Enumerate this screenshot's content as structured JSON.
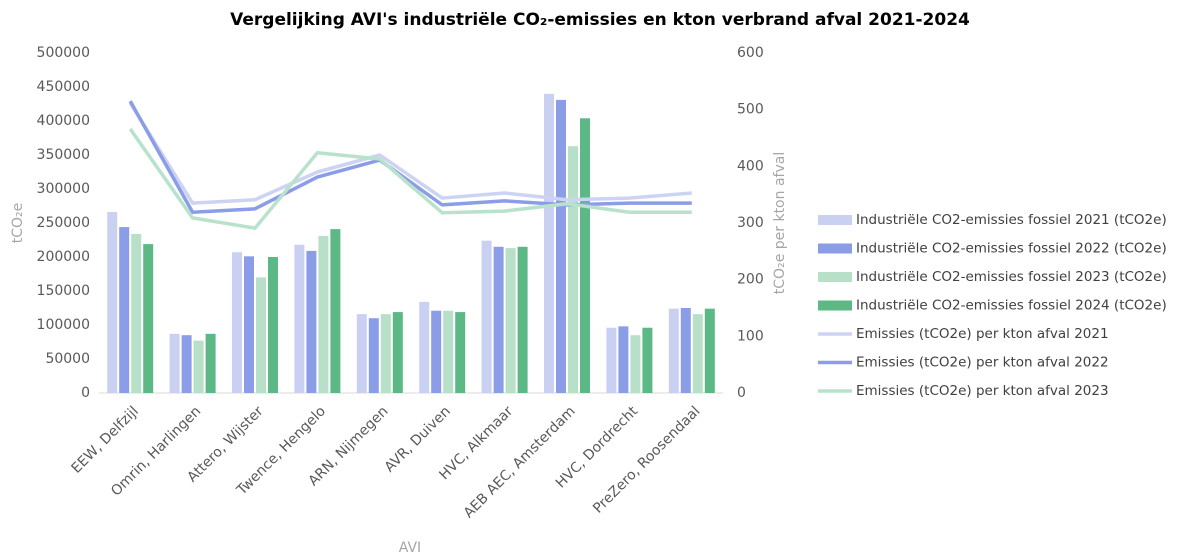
{
  "chart_data": {
    "type": "bar_line",
    "title": "Vergelijking AVI's industriële CO₂-emissies en kton verbrand afval 2021-2024",
    "x_label": "AVI",
    "y_label": "tCO₂e",
    "y2_label": "tCO₂e per kton afval",
    "categories": [
      "EEW, Delfzijl",
      "Omrin, Harlingen",
      "Attero, Wijster",
      "Twence, Hengelo",
      "ARN, Nijmegen",
      "AVR, Duiven",
      "HVC, Alkmaar",
      "AEB AEC, Amsterdam",
      "HVC, Dordrecht",
      "PreZero, Roosendaal"
    ],
    "ylim": [
      0,
      500000
    ],
    "yticks": [
      0,
      50000,
      100000,
      150000,
      200000,
      250000,
      300000,
      350000,
      400000,
      450000,
      500000
    ],
    "y2lim": [
      0,
      600
    ],
    "y2ticks": [
      0,
      100,
      200,
      300,
      400,
      500,
      600
    ],
    "grid": false,
    "legend": "right",
    "series": [
      {
        "name": "Industriële CO2-emissies fossiel 2021 (tCO2e)",
        "type": "bar",
        "color": "#c9d0f2",
        "values": [
          266000,
          87000,
          207000,
          218000,
          116000,
          134000,
          224000,
          440000,
          96000,
          124000
        ]
      },
      {
        "name": "Industriële CO2-emissies fossiel 2022 (tCO2e)",
        "type": "bar",
        "color": "#8a9de6",
        "values": [
          244000,
          85000,
          201000,
          209000,
          110000,
          121000,
          215000,
          431000,
          98000,
          125000
        ]
      },
      {
        "name": "Industriële CO2-emissies fossiel 2023 (tCO2e)",
        "type": "bar",
        "color": "#b8e0c8",
        "values": [
          234000,
          77000,
          170000,
          231000,
          116000,
          121000,
          213000,
          363000,
          85000,
          116000
        ]
      },
      {
        "name": "Industriële CO2-emissies fossiel 2024 (tCO2e)",
        "type": "bar",
        "color": "#5cb885",
        "values": [
          219000,
          87000,
          200000,
          241000,
          119000,
          119000,
          215000,
          404000,
          96000,
          124000
        ]
      },
      {
        "name": "Emissies (tCO2e) per kton afval 2021",
        "type": "line",
        "axis": "y2",
        "color": "#cdd3f2",
        "values": [
          512,
          335,
          341,
          390,
          420,
          344,
          353,
          341,
          344,
          353
        ]
      },
      {
        "name": "Emissies (tCO2e) per kton afval 2022",
        "type": "line",
        "axis": "y2",
        "color": "#8a9de6",
        "values": [
          515,
          319,
          325,
          381,
          411,
          332,
          339,
          332,
          335,
          335
        ]
      },
      {
        "name": "Emissies (tCO2e) per kton afval 2023",
        "type": "line",
        "axis": "y2",
        "color": "#b9e2cc",
        "values": [
          466,
          309,
          291,
          424,
          413,
          318,
          321,
          334,
          319,
          319
        ]
      }
    ]
  }
}
